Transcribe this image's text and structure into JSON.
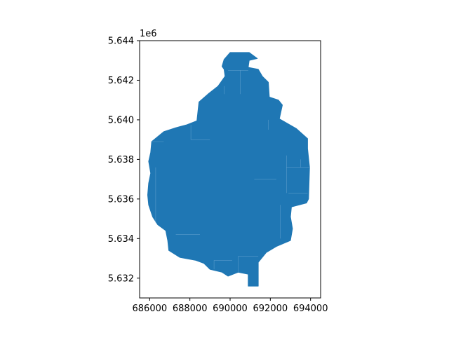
{
  "chart_data": {
    "type": "map",
    "title": "",
    "xlabel": "",
    "ylabel": "",
    "xlim": [
      685500,
      694500
    ],
    "ylim": [
      5631000,
      5644000
    ],
    "x_ticks": [
      686000,
      688000,
      690000,
      692000,
      694000
    ],
    "x_tick_labels": [
      "686000",
      "688000",
      "690000",
      "692000",
      "694000"
    ],
    "y_ticks": [
      5632000,
      5634000,
      5636000,
      5638000,
      5640000,
      5642000,
      5644000
    ],
    "y_tick_labels": [
      "5.632",
      "5.634",
      "5.636",
      "5.638",
      "5.640",
      "5.642",
      "5.644"
    ],
    "y_offset_label": "1e6",
    "grid": false,
    "fill_color": "#1f77b4",
    "edge_color": "#7fb2d9",
    "outline": [
      [
        690950,
        5643400
      ],
      [
        691350,
        5643100
      ],
      [
        690950,
        5643000
      ],
      [
        690900,
        5642650
      ],
      [
        691400,
        5642550
      ],
      [
        691600,
        5642200
      ],
      [
        691900,
        5641900
      ],
      [
        691950,
        5641150
      ],
      [
        692400,
        5641000
      ],
      [
        692600,
        5640750
      ],
      [
        692450,
        5640050
      ],
      [
        692700,
        5639900
      ],
      [
        693300,
        5639550
      ],
      [
        693850,
        5639050
      ],
      [
        693850,
        5638550
      ],
      [
        693950,
        5637600
      ],
      [
        693900,
        5636000
      ],
      [
        693800,
        5635800
      ],
      [
        693050,
        5635600
      ],
      [
        693000,
        5635100
      ],
      [
        693100,
        5634500
      ],
      [
        693000,
        5633900
      ],
      [
        692300,
        5633600
      ],
      [
        691800,
        5633300
      ],
      [
        691400,
        5632800
      ],
      [
        691400,
        5631600
      ],
      [
        690900,
        5631600
      ],
      [
        690900,
        5632200
      ],
      [
        690400,
        5632300
      ],
      [
        689900,
        5632100
      ],
      [
        689600,
        5632300
      ],
      [
        689000,
        5632450
      ],
      [
        688700,
        5632750
      ],
      [
        688300,
        5632900
      ],
      [
        687500,
        5633050
      ],
      [
        686950,
        5633400
      ],
      [
        686900,
        5633900
      ],
      [
        686800,
        5634400
      ],
      [
        686400,
        5634700
      ],
      [
        686150,
        5635100
      ],
      [
        685950,
        5635700
      ],
      [
        685900,
        5636200
      ],
      [
        685950,
        5636800
      ],
      [
        686050,
        5637300
      ],
      [
        685950,
        5637900
      ],
      [
        686050,
        5638350
      ],
      [
        686100,
        5638900
      ],
      [
        686700,
        5639400
      ],
      [
        687300,
        5639600
      ],
      [
        687850,
        5639750
      ],
      [
        688350,
        5639950
      ],
      [
        688450,
        5640900
      ],
      [
        688900,
        5641300
      ],
      [
        689400,
        5641700
      ],
      [
        689750,
        5642200
      ],
      [
        689700,
        5642550
      ],
      [
        689600,
        5642700
      ],
      [
        689700,
        5643050
      ],
      [
        690000,
        5643400
      ]
    ],
    "internal_edges": [
      [
        [
          688050,
          5639750
        ],
        [
          688050,
          5639000
        ],
        [
          689000,
          5639000
        ]
      ],
      [
        [
          686100,
          5638900
        ],
        [
          686700,
          5638900
        ]
      ],
      [
        [
          686300,
          5637600
        ],
        [
          686300,
          5634800
        ]
      ],
      [
        [
          692800,
          5637600
        ],
        [
          693950,
          5637600
        ]
      ],
      [
        [
          692800,
          5638200
        ],
        [
          692800,
          5636300
        ]
      ],
      [
        [
          692900,
          5636300
        ],
        [
          693850,
          5636300
        ]
      ],
      [
        [
          692500,
          5635700
        ],
        [
          692500,
          5634000
        ]
      ],
      [
        [
          690400,
          5632300
        ],
        [
          690400,
          5633100
        ],
        [
          691400,
          5633100
        ]
      ],
      [
        [
          689900,
          5642500
        ],
        [
          690900,
          5642500
        ]
      ],
      [
        [
          690500,
          5642500
        ],
        [
          690500,
          5641300
        ]
      ],
      [
        [
          689700,
          5641700
        ],
        [
          689700,
          5641300
        ]
      ],
      [
        [
          691900,
          5640000
        ],
        [
          691900,
          5639500
        ]
      ],
      [
        [
          687300,
          5634200
        ],
        [
          688500,
          5634200
        ]
      ],
      [
        [
          689200,
          5632450
        ],
        [
          689200,
          5632900
        ],
        [
          690100,
          5632900
        ]
      ],
      [
        [
          691200,
          5637000
        ],
        [
          692300,
          5637000
        ]
      ],
      [
        [
          693500,
          5638000
        ],
        [
          693500,
          5637600
        ]
      ]
    ]
  }
}
